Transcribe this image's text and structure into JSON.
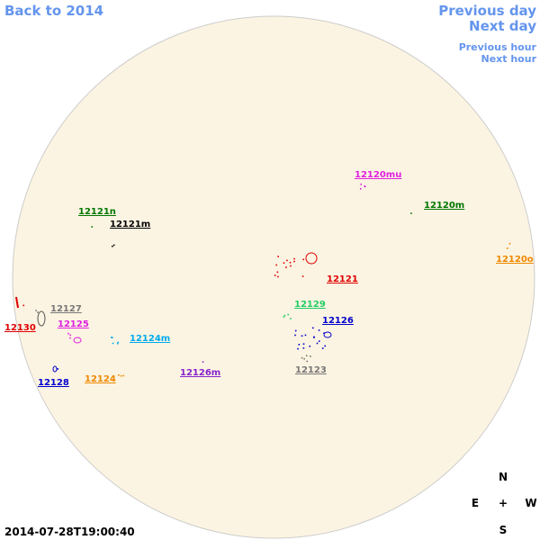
{
  "nav": {
    "back": "Back to 2014",
    "previous_day": "Previous day",
    "next_day": "Next day",
    "previous_hour": "Previous hour",
    "next_hour": "Next hour"
  },
  "timestamp": "2014-07-28T19:00:40",
  "compass": {
    "north": "N",
    "east": "E",
    "center": "+",
    "west": "W",
    "south": "S"
  },
  "regions": [
    {
      "label": "12120mu",
      "color": "#e020e0"
    },
    {
      "label": "12120m",
      "color": "#007700"
    },
    {
      "label": "12121n",
      "color": "#007700"
    },
    {
      "label": "12121m",
      "color": "#000000"
    },
    {
      "label": "12121",
      "color": "#dd0000"
    },
    {
      "label": "12120o",
      "color": "#ee8800"
    },
    {
      "label": "12127",
      "color": "#777777"
    },
    {
      "label": "12129",
      "color": "#22cc66"
    },
    {
      "label": "12130",
      "color": "#dd0000"
    },
    {
      "label": "12125",
      "color": "#e020e0"
    },
    {
      "label": "12126",
      "color": "#0000cc"
    },
    {
      "label": "12124m",
      "color": "#00aaee"
    },
    {
      "label": "12123",
      "color": "#777777"
    },
    {
      "label": "12126m",
      "color": "#8822cc"
    },
    {
      "label": "12128",
      "color": "#0000cc"
    },
    {
      "label": "12124",
      "color": "#ee8800"
    }
  ]
}
